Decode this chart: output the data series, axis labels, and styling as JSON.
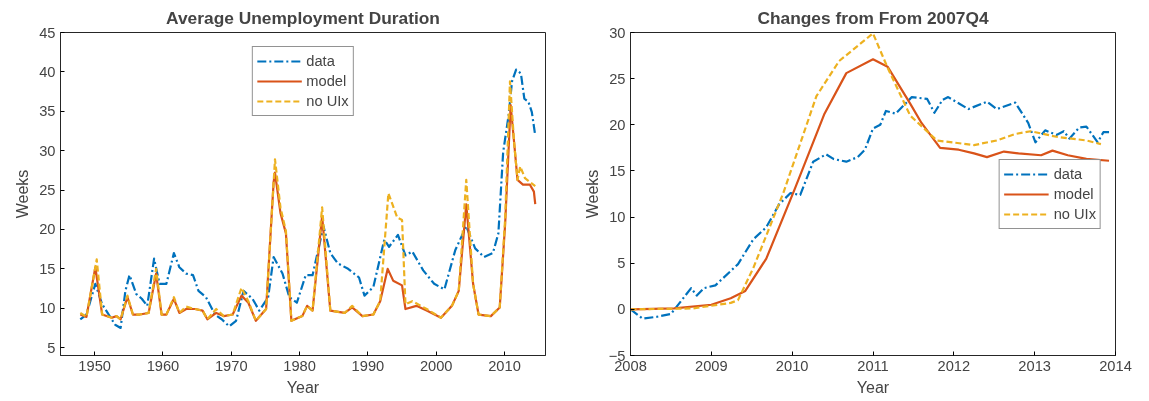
{
  "chart_data": [
    {
      "type": "line",
      "title": "Average Unemployment Duration",
      "xlabel": "Year",
      "ylabel": "Weeks",
      "xlim": [
        1945,
        2016
      ],
      "xticks": [
        1950,
        1960,
        1970,
        1980,
        1990,
        2000,
        2010
      ],
      "ylim": [
        4,
        45
      ],
      "yticks": [
        5,
        10,
        15,
        20,
        25,
        30,
        35,
        40,
        45
      ],
      "grid": false,
      "legend": "top",
      "series": [
        {
          "name": "data",
          "color": "#0072bd",
          "line_style": "dashdot",
          "x": [
            1947.9,
            1948.8,
            1950.1,
            1951.1,
            1952.2,
            1953,
            1953.8,
            1954.5,
            1955.1,
            1956.1,
            1956.9,
            1957.7,
            1958.7,
            1959.5,
            1960.5,
            1961.6,
            1962.4,
            1963.4,
            1964.4,
            1965.2,
            1966.3,
            1967.6,
            1968.6,
            1969.7,
            1970.7,
            1971.8,
            1973.1,
            1974.1,
            1975.4,
            1976.2,
            1977.5,
            1978.5,
            1979.6,
            1980.9,
            1981.9,
            1983.5,
            1984.5,
            1985.6,
            1987.1,
            1988.7,
            1989.5,
            1990.8,
            1992.4,
            1993.1,
            1994.4,
            1995.5,
            1996.5,
            1998.1,
            1999.7,
            2001.2,
            2002.8,
            2004.4,
            2005.7,
            2007,
            2008.3,
            2009.1,
            2009.8,
            2010.6,
            2011.1,
            2011.7,
            2012.4,
            2012.9,
            2013.5,
            2014,
            2014.5
          ],
          "values": [
            8.6,
            9.2,
            13.1,
            10.5,
            9,
            7.9,
            7.5,
            12.2,
            14.2,
            11.8,
            11.2,
            10.3,
            16.3,
            13.1,
            13.1,
            17,
            15.2,
            14.4,
            14.2,
            12.2,
            11.4,
            9.2,
            8.6,
            7.7,
            8.4,
            12.2,
            11.2,
            9.7,
            11.4,
            16.5,
            14.4,
            11.4,
            10.7,
            14.2,
            14.2,
            20.4,
            17,
            15.7,
            15,
            13.9,
            11.6,
            12.7,
            18.7,
            17.8,
            19.3,
            16.7,
            17.2,
            14.8,
            13.1,
            12.4,
            17.4,
            20.4,
            17.6,
            16.5,
            17,
            19.5,
            29.8,
            34.5,
            38.8,
            40.3,
            39.8,
            36.6,
            36.2,
            34.9,
            31.9
          ]
        },
        {
          "name": "model",
          "color": "#d95319",
          "line_style": "solid",
          "x": [
            1947.9,
            1948.8,
            1950.1,
            1951.1,
            1952.5,
            1953.2,
            1953.8,
            1954.8,
            1955.6,
            1956.6,
            1957.9,
            1959,
            1959.8,
            1960.5,
            1961.6,
            1962.4,
            1963.4,
            1964.7,
            1965.8,
            1966.5,
            1967.8,
            1968.9,
            1970.2,
            1971.5,
            1972.5,
            1973.6,
            1975.1,
            1976.2,
            1976.4,
            1977.2,
            1978,
            1978.8,
            1980.4,
            1981.1,
            1981.9,
            1983.3,
            1984.5,
            1986.6,
            1987.7,
            1989.2,
            1990.8,
            1991.8,
            1992.9,
            1993.7,
            1995,
            1995.5,
            1997.1,
            1998.6,
            2000.7,
            2002.3,
            2003.3,
            2004.4,
            2005.4,
            2006.2,
            2008,
            2009.3,
            2010.1,
            2010.9,
            2011.4,
            2011.9,
            2012.7,
            2013.7,
            2014.3,
            2014.5
          ],
          "values": [
            9.2,
            8.9,
            15.2,
            9.2,
            8.8,
            9,
            8.6,
            11.4,
            9.2,
            9.2,
            9.4,
            14.4,
            9.2,
            9.2,
            11.2,
            9.4,
            9.9,
            9.9,
            9.7,
            8.6,
            9.4,
            9,
            9.2,
            11.6,
            10.7,
            8.4,
            9.9,
            26,
            27.2,
            22.1,
            19.5,
            8.4,
            9,
            10.3,
            9.7,
            21.7,
            9.7,
            9.4,
            10.1,
            9,
            9.2,
            10.9,
            15,
            13.5,
            12.9,
            9.9,
            10.3,
            9.7,
            8.8,
            10.3,
            12.2,
            23.2,
            13.1,
            9.2,
            9,
            10.1,
            20.8,
            35.8,
            31.1,
            26.3,
            25.7,
            25.7,
            24.8,
            23.2
          ]
        },
        {
          "name": "no UIx",
          "color": "#edb120",
          "line_style": "dashed",
          "x": [
            1947.9,
            1948.8,
            1950.3,
            1951.1,
            1952.5,
            1953.2,
            1953.8,
            1954.8,
            1955.6,
            1956.6,
            1957.9,
            1959,
            1959.8,
            1960.5,
            1961.6,
            1962.4,
            1963.4,
            1964.7,
            1965.8,
            1966.5,
            1967.8,
            1968.9,
            1970.2,
            1971.5,
            1972.5,
            1973.6,
            1975.1,
            1976.4,
            1977.2,
            1978,
            1978.8,
            1980.4,
            1981.1,
            1981.9,
            1983.3,
            1984.5,
            1986.6,
            1987.7,
            1989.2,
            1990.8,
            1991.8,
            1993,
            1994.3,
            1995,
            1995.5,
            1996.5,
            1998.6,
            2000.7,
            2002.3,
            2003.3,
            2004.4,
            2005.4,
            2006.2,
            2008,
            2009.3,
            2010.1,
            2010.8,
            2011.4,
            2011.9,
            2012.3,
            2013,
            2014.5
          ],
          "values": [
            9.4,
            8.9,
            16.2,
            9.2,
            8.8,
            9,
            8.6,
            11.6,
            9.2,
            9.2,
            9.4,
            15,
            9.2,
            9.2,
            11.4,
            9.4,
            10.2,
            9.9,
            9.7,
            8.6,
            9.9,
            9,
            9.2,
            12.6,
            10.9,
            8.4,
            9.9,
            28.9,
            22.8,
            19.8,
            8.4,
            9,
            10.3,
            9.7,
            22.8,
            9.7,
            9.4,
            10.3,
            9,
            9.2,
            10.9,
            24.6,
            21.5,
            21.2,
            10.5,
            10.9,
            9.9,
            8.8,
            10.3,
            12.2,
            26.3,
            13.1,
            9.2,
            9,
            10.1,
            21.5,
            38.8,
            31.1,
            26.3,
            28,
            26.5,
            25.5
          ]
        }
      ]
    },
    {
      "type": "line",
      "title": "Changes from From 2007Q4",
      "xlabel": "Year",
      "ylabel": "Weeks",
      "xlim": [
        2008,
        2014
      ],
      "xticks": [
        2008,
        2009,
        2010,
        2011,
        2012,
        2013,
        2014
      ],
      "ylim": [
        -5,
        30
      ],
      "yticks": [
        -5,
        0,
        5,
        10,
        15,
        20,
        25,
        30
      ],
      "grid": false,
      "legend": "right",
      "series": [
        {
          "name": "data",
          "color": "#0072bd",
          "line_style": "dashdot",
          "x": [
            2008,
            2008.15,
            2008.33,
            2008.5,
            2008.75,
            2008.82,
            2008.91,
            2009.05,
            2009.33,
            2009.52,
            2009.68,
            2009.84,
            2009.98,
            2010.1,
            2010.26,
            2010.42,
            2010.51,
            2010.67,
            2010.81,
            2010.9,
            2011,
            2011.09,
            2011.16,
            2011.28,
            2011.48,
            2011.67,
            2011.76,
            2011.86,
            2011.93,
            2012.18,
            2012.41,
            2012.53,
            2012.76,
            2012.92,
            2013.01,
            2013.13,
            2013.27,
            2013.36,
            2013.43,
            2013.55,
            2013.64,
            2013.78,
            2013.85,
            2013.92
          ],
          "values": [
            0,
            -1,
            -0.8,
            -0.5,
            2.3,
            1.5,
            2.3,
            2.6,
            4.9,
            7.6,
            8.9,
            11.4,
            12.6,
            12.4,
            16,
            16.8,
            16.3,
            16,
            16.5,
            17.3,
            19.6,
            20,
            21.5,
            21.2,
            23,
            22.8,
            21.3,
            22.7,
            23,
            21.7,
            22.5,
            21.7,
            22.4,
            20.2,
            18.1,
            19.4,
            18.9,
            19.3,
            18.5,
            19.7,
            19.8,
            18.1,
            19.2,
            19.2
          ]
        },
        {
          "name": "model",
          "color": "#d95319",
          "line_style": "solid",
          "x": [
            2008,
            2008.54,
            2009,
            2009.24,
            2009.42,
            2009.68,
            2010.03,
            2010.4,
            2010.67,
            2011,
            2011.18,
            2011.46,
            2011.6,
            2011.83,
            2012.06,
            2012.25,
            2012.41,
            2012.62,
            2012.8,
            2013.08,
            2013.22,
            2013.41,
            2013.64,
            2013.92
          ],
          "values": [
            0,
            0.1,
            0.5,
            1.2,
            2,
            5.5,
            13,
            21.2,
            25.6,
            27.1,
            26.3,
            22.3,
            20.2,
            17.5,
            17.3,
            16.9,
            16.5,
            17.1,
            16.9,
            16.7,
            17.2,
            16.7,
            16.3,
            16.1
          ]
        },
        {
          "name": "no UIx",
          "color": "#edb120",
          "line_style": "dashed",
          "x": [
            2008,
            2008.77,
            2009.24,
            2009.33,
            2009.52,
            2009.89,
            2010.3,
            2010.58,
            2011,
            2011.18,
            2011.46,
            2011.79,
            2012.25,
            2012.53,
            2012.76,
            2012.95,
            2013.27,
            2013.64,
            2013.82
          ],
          "values": [
            0,
            0.1,
            0.7,
            1,
            4.5,
            12.6,
            23.1,
            26.9,
            29.9,
            26.2,
            21,
            18.3,
            17.8,
            18.3,
            19,
            19.3,
            18.7,
            18.3,
            17.9
          ]
        }
      ]
    }
  ]
}
